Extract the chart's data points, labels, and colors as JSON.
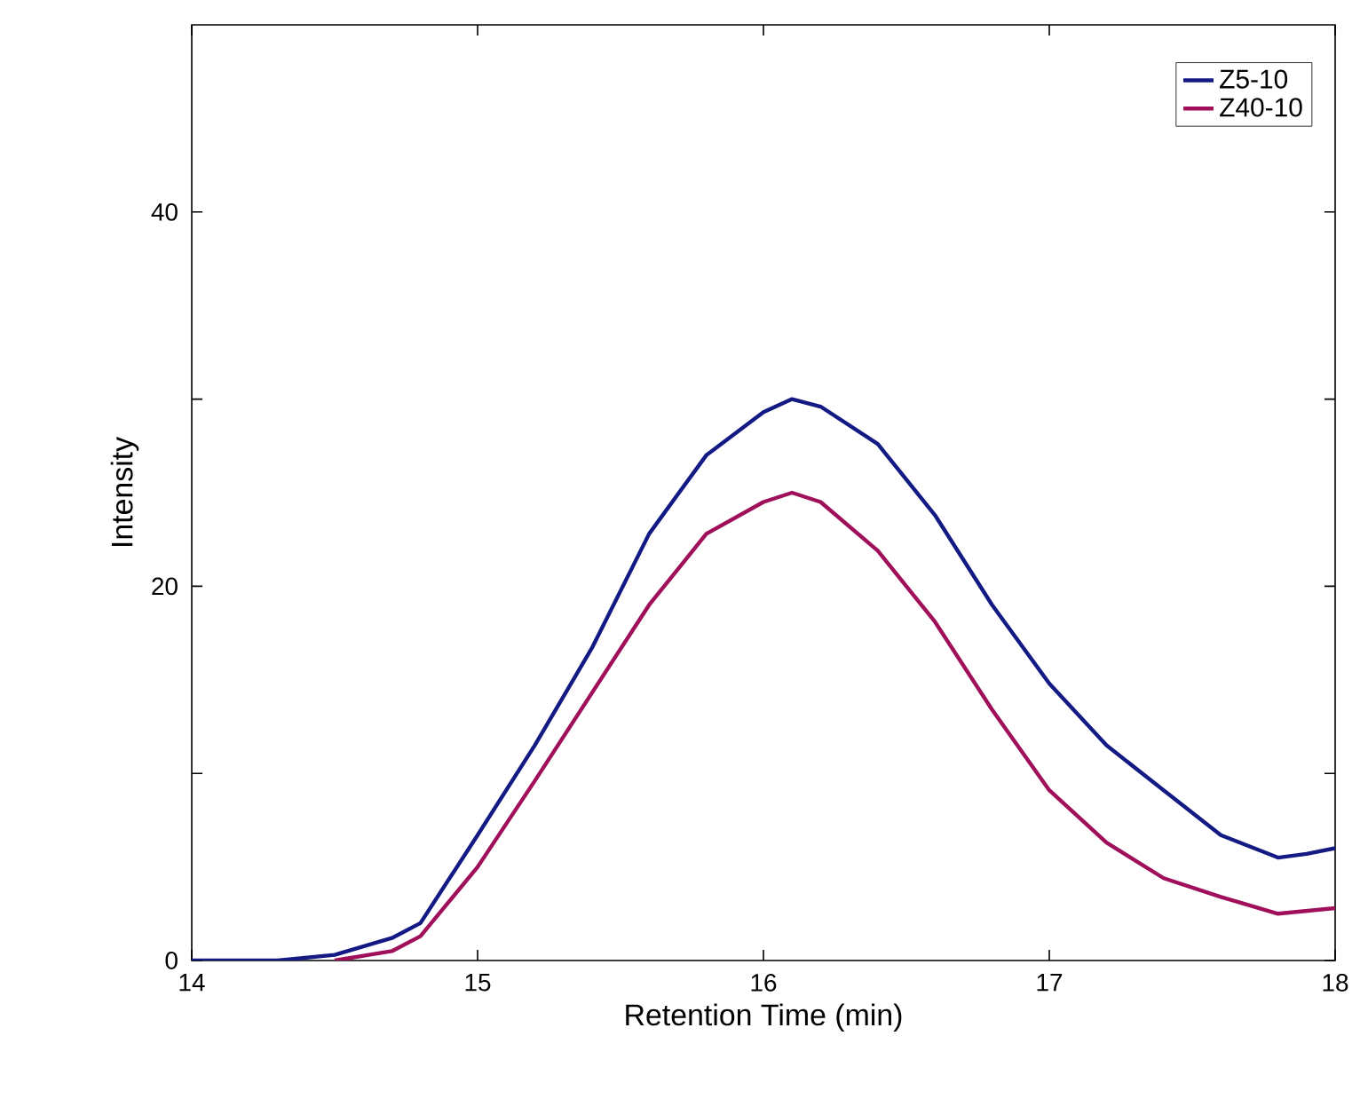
{
  "chart_data": {
    "type": "line",
    "xlabel": "Retention Time (min)",
    "ylabel": "Intensity",
    "xlim": [
      14,
      18
    ],
    "ylim": [
      0,
      50
    ],
    "xticks": [
      14,
      15,
      16,
      17,
      18
    ],
    "yticks": [
      0,
      {
        "value": 10,
        "label": null
      },
      20,
      {
        "value": 30,
        "label": null
      },
      40
    ],
    "legend": "top right",
    "grid": false,
    "series": [
      {
        "name": "Z5-10",
        "color": "#141a84",
        "x": [
          14.0,
          14.3,
          14.5,
          14.7,
          14.8,
          15.0,
          15.2,
          15.4,
          15.6,
          15.8,
          16.0,
          16.1,
          16.2,
          16.4,
          16.6,
          16.8,
          17.0,
          17.2,
          17.4,
          17.6,
          17.8,
          17.9,
          18.0
        ],
        "values": [
          0,
          0,
          0.3,
          1.2,
          2,
          6.7,
          11.5,
          16.7,
          22.8,
          27,
          29.3,
          30,
          29.6,
          27.6,
          23.8,
          19,
          14.8,
          11.5,
          9.1,
          6.7,
          5.5,
          5.7,
          6.0
        ]
      },
      {
        "name": "Z40-10",
        "color": "#a0105a",
        "x": [
          14.5,
          14.7,
          14.8,
          15.0,
          15.2,
          15.4,
          15.6,
          15.8,
          16.0,
          16.1,
          16.2,
          16.4,
          16.6,
          16.8,
          17.0,
          17.2,
          17.4,
          17.6,
          17.8,
          18.0
        ],
        "values": [
          0,
          0.5,
          1.3,
          5.0,
          9.6,
          14.3,
          19,
          22.8,
          24.5,
          25,
          24.5,
          21.9,
          18.1,
          13.4,
          9.1,
          6.3,
          4.4,
          3.4,
          2.5,
          2.8
        ]
      }
    ]
  }
}
